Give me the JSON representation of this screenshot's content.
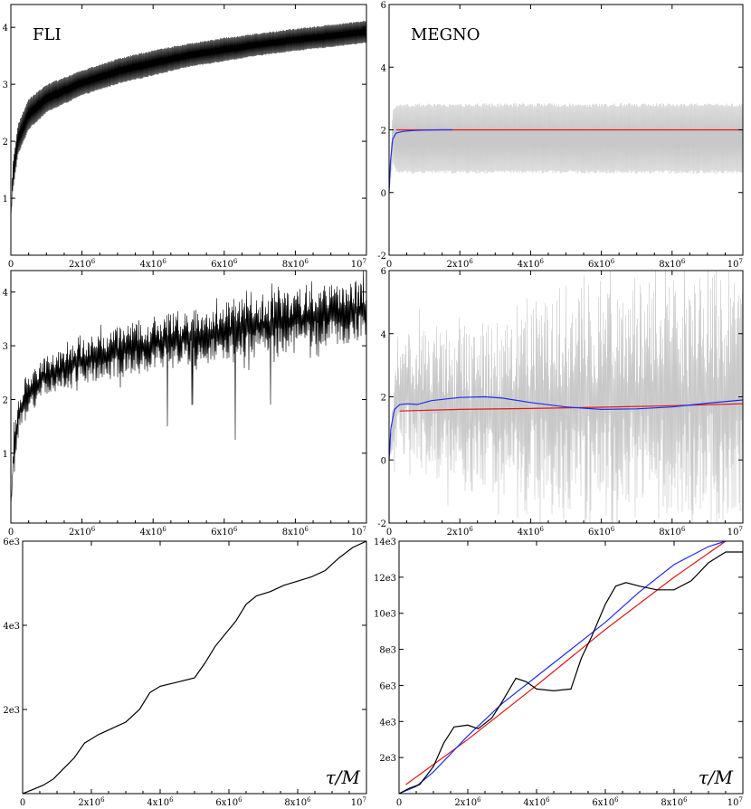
{
  "colors": {
    "black": "#000000",
    "gray": "#c8c8c8",
    "blue": "#1e2cf0",
    "red": "#e01818"
  },
  "chart_data": [
    {
      "id": "top_left",
      "type": "line",
      "title": "FLI",
      "corner_label": "",
      "xlim": [
        0,
        10000000
      ],
      "ylim": [
        0,
        4.4
      ],
      "x_ticks": [
        "0",
        "2x10^6",
        "4x10^6",
        "6x10^6",
        "8x10^6",
        "10^7"
      ],
      "y_ticks": [
        {
          "value": 1,
          "label": "1"
        },
        {
          "value": 2,
          "label": "2"
        },
        {
          "value": 3,
          "label": "3"
        },
        {
          "value": 4,
          "label": "4"
        }
      ],
      "series": [
        {
          "style": "oscillating_band",
          "color": "black",
          "x": [
            0,
            50000,
            200000,
            500000,
            1000000,
            2000000,
            3000000,
            4000000,
            5000000,
            6000000,
            7000000,
            8000000,
            9000000,
            10000000
          ],
          "upper": [
            0.6,
            1.6,
            2.3,
            2.75,
            3.0,
            3.25,
            3.45,
            3.6,
            3.72,
            3.82,
            3.9,
            3.98,
            4.05,
            4.12
          ],
          "lower": [
            0.6,
            1.1,
            1.75,
            2.2,
            2.5,
            2.8,
            3.0,
            3.15,
            3.3,
            3.4,
            3.5,
            3.58,
            3.65,
            3.72
          ]
        }
      ]
    },
    {
      "id": "top_right",
      "type": "line",
      "title": "MEGNO",
      "corner_label": "",
      "xlim": [
        0,
        10000000
      ],
      "ylim": [
        -2,
        6
      ],
      "x_ticks": [
        "0",
        "2x10^6",
        "4x10^6",
        "6x10^6",
        "8x10^6",
        "10^7"
      ],
      "y_ticks": [
        {
          "value": -2,
          "label": "-2"
        },
        {
          "value": 0,
          "label": "0"
        },
        {
          "value": 2,
          "label": "2"
        },
        {
          "value": 4,
          "label": "4"
        },
        {
          "value": 6,
          "label": "6"
        }
      ],
      "series": [
        {
          "style": "oscillating_band",
          "color": "gray",
          "x": [
            0,
            100000,
            200000,
            10000000
          ],
          "upper": [
            0,
            2.6,
            2.85,
            2.85
          ],
          "lower": [
            0,
            0.9,
            0.6,
            0.6
          ]
        },
        {
          "style": "line",
          "color": "red",
          "x": [
            200000,
            10000000
          ],
          "y": [
            2.0,
            2.0
          ]
        },
        {
          "style": "line",
          "color": "blue",
          "x": [
            0,
            40000,
            100000,
            200000,
            400000,
            700000,
            1000000,
            1500000,
            1800000
          ],
          "y": [
            0,
            1.0,
            1.7,
            1.9,
            1.95,
            1.98,
            1.99,
            2.0,
            2.0
          ]
        }
      ]
    },
    {
      "id": "middle_left",
      "type": "line",
      "title": "",
      "corner_label": "",
      "xlim": [
        0,
        10000000
      ],
      "ylim": [
        -0.3,
        4.4
      ],
      "x_ticks": [
        "0",
        "2x10^6",
        "4x10^6",
        "6x10^6",
        "8x10^6",
        "10^7"
      ],
      "y_ticks": [
        {
          "value": 1,
          "label": "1"
        },
        {
          "value": 2,
          "label": "2"
        },
        {
          "value": 3,
          "label": "3"
        },
        {
          "value": 4,
          "label": "4"
        }
      ],
      "series": [
        {
          "style": "noisy_band",
          "color": "black",
          "x": [
            0,
            100000,
            300000,
            700000,
            1000000,
            2000000,
            3000000,
            4000000,
            5000000,
            6000000,
            7000000,
            8000000,
            9000000,
            10000000
          ],
          "upper": [
            0,
            1.8,
            2.3,
            2.7,
            2.8,
            3.1,
            3.4,
            3.55,
            3.7,
            3.8,
            3.95,
            4.05,
            4.15,
            4.3
          ],
          "lower": [
            0,
            0.8,
            1.5,
            1.9,
            2.1,
            2.3,
            2.4,
            2.5,
            2.6,
            2.7,
            2.8,
            2.9,
            3.0,
            3.1
          ],
          "dips": [
            [
              1700000,
              1.6
            ],
            [
              2800000,
              2.0
            ],
            [
              4400000,
              1.5
            ],
            [
              5100000,
              1.9
            ],
            [
              6300000,
              1.25
            ],
            [
              7300000,
              1.9
            ],
            [
              8600000,
              2.1
            ]
          ]
        }
      ]
    },
    {
      "id": "middle_right",
      "type": "line",
      "title": "",
      "corner_label": "",
      "xlim": [
        0,
        10000000
      ],
      "ylim": [
        -2,
        6
      ],
      "x_ticks": [
        "0",
        "2x10^6",
        "4x10^6",
        "6x10^6",
        "8x10^6",
        "10^7"
      ],
      "y_ticks": [
        {
          "value": -2,
          "label": "-2"
        },
        {
          "value": 0,
          "label": "0"
        },
        {
          "value": 2,
          "label": "2"
        },
        {
          "value": 4,
          "label": "4"
        },
        {
          "value": 6,
          "label": "6"
        }
      ],
      "series": [
        {
          "style": "noisy_band",
          "color": "gray",
          "x": [
            0,
            200000,
            1000000,
            2000000,
            3000000,
            3500000,
            4000000,
            5000000,
            6000000,
            7000000,
            8000000,
            9000000,
            10000000
          ],
          "upper": [
            0,
            3.9,
            4.2,
            4.3,
            4.4,
            4.8,
            5.4,
            5.6,
            5.7,
            5.8,
            5.8,
            5.9,
            5.9
          ],
          "lower": [
            0,
            0.2,
            -0.5,
            -1.0,
            -1.2,
            -1.6,
            -1.9,
            -1.9,
            -2.0,
            -2.0,
            -2.0,
            -2.0,
            -2.0
          ],
          "dips": []
        },
        {
          "style": "line",
          "color": "red",
          "x": [
            300000,
            2000000,
            4000000,
            6000000,
            8000000,
            10000000
          ],
          "y": [
            1.55,
            1.6,
            1.63,
            1.67,
            1.72,
            1.78
          ]
        },
        {
          "style": "line",
          "color": "blue",
          "x": [
            0,
            50000,
            150000,
            300000,
            500000,
            800000,
            1200000,
            2000000,
            2700000,
            3200000,
            4000000,
            5000000,
            6000000,
            7000000,
            8000000,
            9000000,
            10000000
          ],
          "y": [
            0,
            1.0,
            1.6,
            1.75,
            1.78,
            1.76,
            1.88,
            1.98,
            2.0,
            1.96,
            1.82,
            1.68,
            1.6,
            1.62,
            1.68,
            1.8,
            1.9
          ]
        }
      ]
    },
    {
      "id": "bottom_left",
      "type": "line",
      "title": "",
      "corner_label": "τ/M",
      "xlim": [
        0,
        10000000
      ],
      "ylim": [
        0,
        6000
      ],
      "x_ticks": [
        "0",
        "2x10^6",
        "4x10^6",
        "6x10^6",
        "8x10^6",
        "10^7"
      ],
      "y_ticks": [
        {
          "value": 2000,
          "label": "2e3"
        },
        {
          "value": 4000,
          "label": "4e3"
        },
        {
          "value": 6000,
          "label": "6e3"
        }
      ],
      "series": [
        {
          "style": "line",
          "color": "black",
          "x": [
            0,
            300000,
            600000,
            900000,
            1200000,
            1500000,
            1800000,
            2200000,
            2600000,
            3000000,
            3400000,
            3700000,
            4000000,
            4500000,
            5000000,
            5300000,
            5600000,
            5900000,
            6200000,
            6500000,
            6800000,
            7200000,
            7600000,
            8000000,
            8400000,
            8800000,
            9200000,
            9600000,
            10000000
          ],
          "y": [
            0,
            100,
            200,
            350,
            600,
            850,
            1200,
            1400,
            1550,
            1700,
            2000,
            2400,
            2550,
            2650,
            2750,
            3100,
            3500,
            3800,
            4100,
            4500,
            4700,
            4800,
            4950,
            5050,
            5150,
            5300,
            5600,
            5850,
            6000
          ]
        }
      ]
    },
    {
      "id": "bottom_right",
      "type": "line",
      "title": "",
      "corner_label": "τ/M",
      "xlim": [
        0,
        10000000
      ],
      "ylim": [
        0,
        14000
      ],
      "x_ticks": [
        "0",
        "2x10^6",
        "4x10^6",
        "6x10^6",
        "8x10^6",
        "10^7"
      ],
      "y_ticks": [
        {
          "value": 2000,
          "label": "2e3"
        },
        {
          "value": 4000,
          "label": "4e3"
        },
        {
          "value": 6000,
          "label": "6e3"
        },
        {
          "value": 8000,
          "label": "8e3"
        },
        {
          "value": 10000,
          "label": "10e3"
        },
        {
          "value": 12000,
          "label": "12e3"
        },
        {
          "value": 14000,
          "label": "14e3"
        }
      ],
      "series": [
        {
          "style": "line",
          "color": "red",
          "x": [
            200000,
            2000000,
            4000000,
            6000000,
            8000000,
            9500000
          ],
          "y": [
            500,
            3000,
            6000,
            9100,
            12000,
            14000
          ]
        },
        {
          "style": "line",
          "color": "blue",
          "x": [
            0,
            500000,
            1000000,
            2000000,
            3000000,
            4000000,
            5000000,
            6000000,
            7000000,
            8000000,
            9000000,
            9500000
          ],
          "y": [
            0,
            400,
            1200,
            3200,
            5000,
            6500,
            8000,
            9500,
            11200,
            12700,
            13700,
            14000
          ]
        },
        {
          "style": "line",
          "color": "black",
          "x": [
            0,
            300000,
            600000,
            1000000,
            1300000,
            1600000,
            2000000,
            2300000,
            2700000,
            3000000,
            3400000,
            3700000,
            4000000,
            4500000,
            5000000,
            5300000,
            5600000,
            6000000,
            6300000,
            6600000,
            7000000,
            7500000,
            8000000,
            8500000,
            9000000,
            9500000,
            10000000
          ],
          "y": [
            0,
            300,
            500,
            1500,
            2800,
            3700,
            3800,
            3600,
            4200,
            5100,
            6400,
            6200,
            5800,
            5700,
            5800,
            7500,
            8700,
            10500,
            11500,
            11700,
            11500,
            11300,
            11300,
            11800,
            12800,
            13400,
            13400
          ]
        }
      ]
    }
  ]
}
